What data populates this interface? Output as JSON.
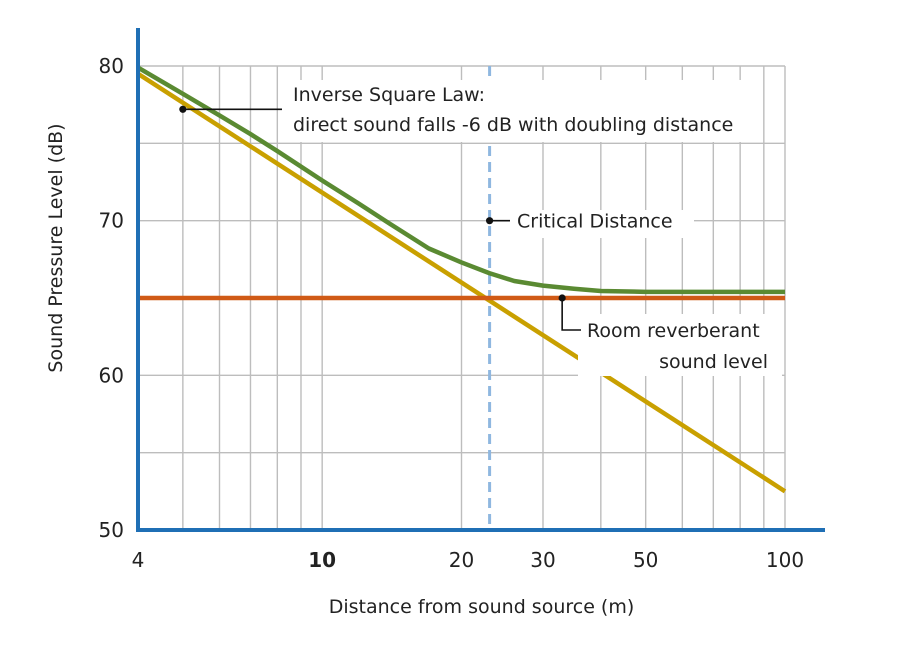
{
  "chart_data": {
    "type": "line",
    "xlabel": "Distance from sound source (m)",
    "ylabel": "Sound Pressure Level (dB)",
    "x_scale": "log",
    "xlim": [
      4,
      100
    ],
    "ylim": [
      50,
      80
    ],
    "x_ticks": [
      {
        "value": 4,
        "label": "4",
        "bold": false
      },
      {
        "value": 10,
        "label": "10",
        "bold": true
      },
      {
        "value": 20,
        "label": "20",
        "bold": false
      },
      {
        "value": 30,
        "label": "30",
        "bold": false
      },
      {
        "value": 50,
        "label": "50",
        "bold": false
      },
      {
        "value": 100,
        "label": "100",
        "bold": false
      }
    ],
    "y_ticks": [
      {
        "value": 50,
        "label": "50"
      },
      {
        "value": 60,
        "label": "60"
      },
      {
        "value": 70,
        "label": "70"
      },
      {
        "value": 80,
        "label": "80"
      }
    ],
    "x_gridlines": [
      5,
      6,
      7,
      8,
      9,
      10,
      20,
      30,
      40,
      50,
      60,
      70,
      80,
      90,
      100
    ],
    "y_gridlines": [
      55,
      60,
      65,
      70,
      75,
      80
    ],
    "grid": true,
    "series": [
      {
        "key": "direct",
        "color": "#c9a000",
        "x": [
          4,
          100
        ],
        "y": [
          79.5,
          52.5
        ]
      },
      {
        "key": "reverberant",
        "color": "#d05a16",
        "x": [
          4,
          100
        ],
        "y": [
          65,
          65
        ]
      },
      {
        "key": "total",
        "color": "#5a8a32",
        "x": [
          4,
          5,
          6,
          7,
          8,
          10,
          12,
          14,
          17,
          20,
          23,
          26,
          30,
          35,
          40,
          50,
          60,
          70,
          80,
          100
        ],
        "y": [
          79.9,
          78.2,
          76.8,
          75.6,
          74.5,
          72.6,
          71.1,
          69.8,
          68.2,
          67.3,
          66.6,
          66.1,
          65.8,
          65.6,
          65.45,
          65.4,
          65.4,
          65.4,
          65.4,
          65.4
        ]
      }
    ],
    "critical_distance": {
      "x": 23,
      "color": "#8fb7e0"
    },
    "annotations": [
      {
        "key": "inverse",
        "lines": [
          "Inverse Square Law:",
          "direct sound falls -6 dB with doubling distance"
        ],
        "point": {
          "x": 5,
          "y": 77.2
        }
      },
      {
        "key": "critical",
        "lines": [
          "Critical Distance"
        ],
        "point": {
          "x": 23,
          "y": 70
        }
      },
      {
        "key": "reverb",
        "lines": [
          "Room reverberant",
          "sound level"
        ],
        "point": {
          "x": 33,
          "y": 65
        }
      }
    ],
    "axis_color": "#1f6fb5"
  }
}
